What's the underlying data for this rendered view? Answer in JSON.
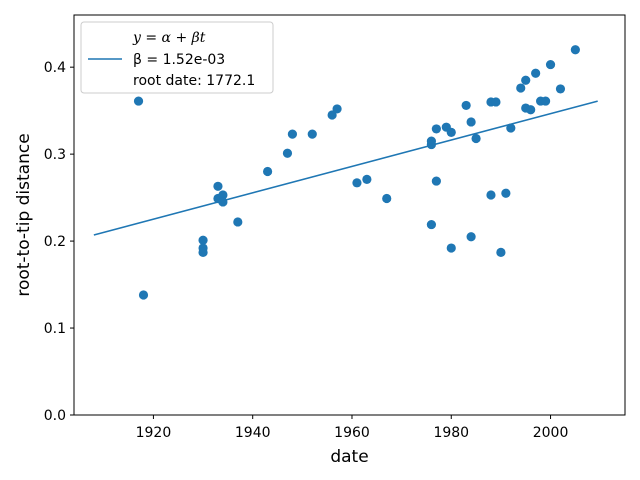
{
  "chart_data": {
    "type": "scatter",
    "xlabel": "date",
    "ylabel": "root-to-tip distance",
    "xlim": [
      1904,
      2015
    ],
    "ylim": [
      0,
      0.46
    ],
    "x_ticks": [
      1920,
      1940,
      1960,
      1980,
      2000
    ],
    "y_ticks": [
      0.0,
      0.1,
      0.2,
      0.3,
      0.4
    ],
    "y_tick_labels": [
      "0.0",
      "0.1",
      "0.2",
      "0.3",
      "0.4"
    ],
    "grid": false,
    "legend_position": "top-left",
    "legend": {
      "line1": "y = α + βt",
      "line2": "β = 1.52e-03",
      "line3": "root date: 1772.1"
    },
    "colors": {
      "series": "#1f77b4"
    },
    "series": [
      {
        "type": "scatter",
        "points": [
          [
            1917,
            0.361
          ],
          [
            1918,
            0.138
          ],
          [
            1930,
            0.201
          ],
          [
            1930,
            0.192
          ],
          [
            1930,
            0.187
          ],
          [
            1933,
            0.263
          ],
          [
            1933,
            0.249
          ],
          [
            1934,
            0.253
          ],
          [
            1934,
            0.245
          ],
          [
            1937,
            0.222
          ],
          [
            1943,
            0.28
          ],
          [
            1947,
            0.301
          ],
          [
            1948,
            0.323
          ],
          [
            1952,
            0.323
          ],
          [
            1956,
            0.345
          ],
          [
            1957,
            0.352
          ],
          [
            1961,
            0.267
          ],
          [
            1963,
            0.271
          ],
          [
            1967,
            0.249
          ],
          [
            1976,
            0.315
          ],
          [
            1976,
            0.311
          ],
          [
            1976,
            0.219
          ],
          [
            1977,
            0.329
          ],
          [
            1977,
            0.269
          ],
          [
            1979,
            0.331
          ],
          [
            1980,
            0.325
          ],
          [
            1980,
            0.192
          ],
          [
            1983,
            0.356
          ],
          [
            1984,
            0.337
          ],
          [
            1984,
            0.205
          ],
          [
            1985,
            0.318
          ],
          [
            1988,
            0.36
          ],
          [
            1988,
            0.253
          ],
          [
            1989,
            0.36
          ],
          [
            1990,
            0.187
          ],
          [
            1991,
            0.255
          ],
          [
            1992,
            0.33
          ],
          [
            1994,
            0.376
          ],
          [
            1995,
            0.385
          ],
          [
            1995,
            0.353
          ],
          [
            1996,
            0.351
          ],
          [
            1997,
            0.393
          ],
          [
            1998,
            0.361
          ],
          [
            1999,
            0.361
          ],
          [
            2000,
            0.403
          ],
          [
            2002,
            0.375
          ],
          [
            2005,
            0.42
          ]
        ]
      },
      {
        "type": "line",
        "points": [
          [
            1908,
            0.207
          ],
          [
            2009.5,
            0.361
          ]
        ]
      }
    ]
  }
}
